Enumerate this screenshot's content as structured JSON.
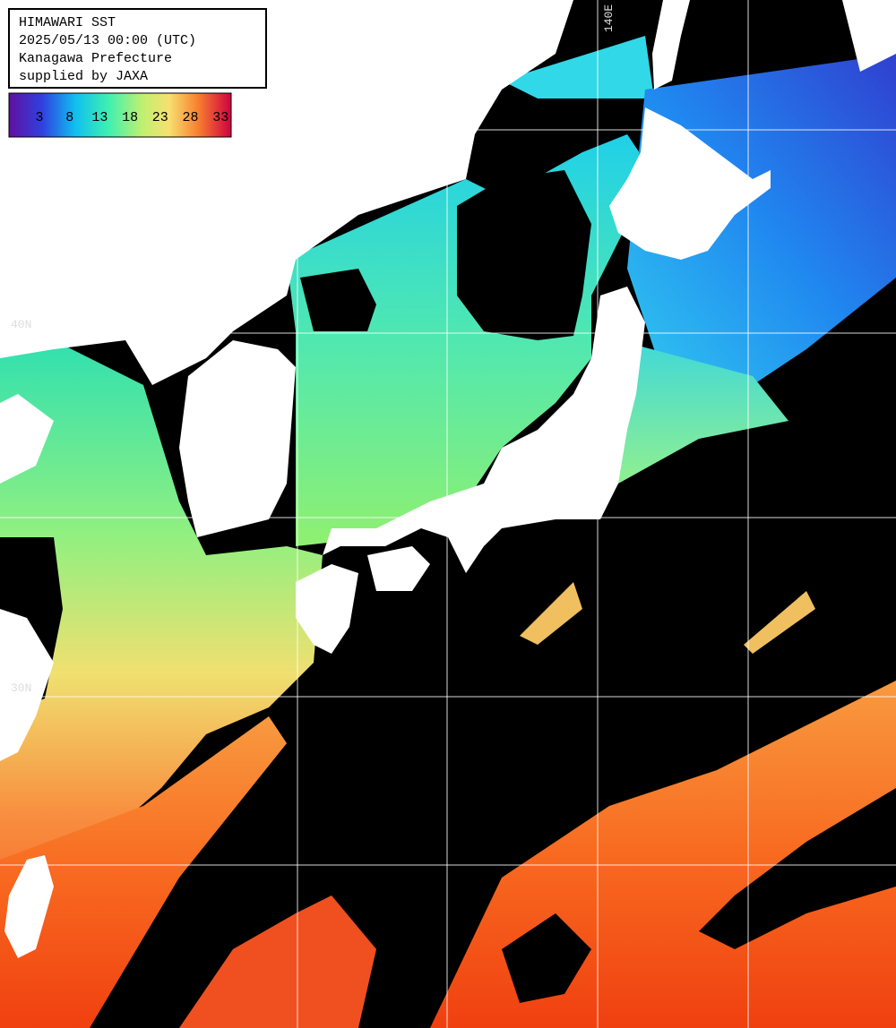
{
  "header": {
    "lines": [
      "HIMAWARI SST",
      "2025/05/13 00:00 (UTC)",
      "Kanagawa Prefecture",
      "supplied by JAXA"
    ]
  },
  "colorbar": {
    "labels": [
      "3",
      "8",
      "13",
      "18",
      "23",
      "28",
      "33"
    ]
  },
  "grid_labels": {
    "lat_40": "40N",
    "lat_30": "30N",
    "lon_140": "140E"
  }
}
